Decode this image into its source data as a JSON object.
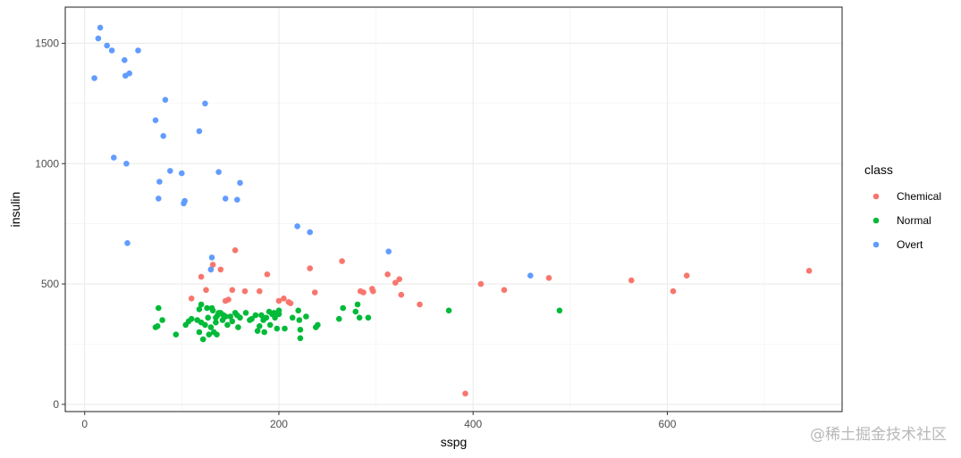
{
  "chart_data": {
    "type": "scatter",
    "xlabel": "sspg",
    "ylabel": "insulin",
    "xlim": [
      -20,
      780
    ],
    "ylim": [
      -30,
      1650
    ],
    "x_ticks": [
      0,
      200,
      400,
      600
    ],
    "y_ticks": [
      0,
      500,
      1000,
      1500
    ],
    "grid": true,
    "legend": {
      "title": "class",
      "position": "right"
    },
    "series": [
      {
        "name": "Chemical",
        "color": "#F8766D",
        "points": [
          [
            110,
            440
          ],
          [
            120,
            530
          ],
          [
            125,
            475
          ],
          [
            130,
            560
          ],
          [
            132,
            580
          ],
          [
            140,
            560
          ],
          [
            145,
            430
          ],
          [
            148,
            435
          ],
          [
            152,
            475
          ],
          [
            155,
            640
          ],
          [
            165,
            470
          ],
          [
            180,
            470
          ],
          [
            188,
            540
          ],
          [
            200,
            430
          ],
          [
            205,
            440
          ],
          [
            210,
            425
          ],
          [
            212,
            420
          ],
          [
            232,
            565
          ],
          [
            237,
            465
          ],
          [
            265,
            595
          ],
          [
            284,
            470
          ],
          [
            287,
            465
          ],
          [
            296,
            480
          ],
          [
            297,
            470
          ],
          [
            312,
            540
          ],
          [
            320,
            505
          ],
          [
            324,
            520
          ],
          [
            326,
            455
          ],
          [
            345,
            415
          ],
          [
            392,
            45
          ],
          [
            408,
            500
          ],
          [
            432,
            475
          ],
          [
            478,
            525
          ],
          [
            563,
            515
          ],
          [
            606,
            470
          ],
          [
            620,
            535
          ],
          [
            746,
            555
          ]
        ]
      },
      {
        "name": "Normal",
        "color": "#00BA38",
        "points": [
          [
            73,
            320
          ],
          [
            75,
            325
          ],
          [
            76,
            400
          ],
          [
            80,
            350
          ],
          [
            94,
            290
          ],
          [
            104,
            330
          ],
          [
            107,
            345
          ],
          [
            110,
            355
          ],
          [
            116,
            350
          ],
          [
            118,
            300
          ],
          [
            118,
            395
          ],
          [
            120,
            415
          ],
          [
            120,
            340
          ],
          [
            122,
            270
          ],
          [
            124,
            330
          ],
          [
            126,
            400
          ],
          [
            127,
            360
          ],
          [
            128,
            290
          ],
          [
            130,
            320
          ],
          [
            131,
            400
          ],
          [
            132,
            390
          ],
          [
            133,
            300
          ],
          [
            135,
            360
          ],
          [
            135,
            340
          ],
          [
            136,
            290
          ],
          [
            137,
            370
          ],
          [
            138,
            380
          ],
          [
            140,
            380
          ],
          [
            142,
            350
          ],
          [
            143,
            370
          ],
          [
            145,
            365
          ],
          [
            147,
            330
          ],
          [
            150,
            365
          ],
          [
            152,
            345
          ],
          [
            155,
            380
          ],
          [
            157,
            370
          ],
          [
            158,
            320
          ],
          [
            160,
            360
          ],
          [
            166,
            380
          ],
          [
            170,
            350
          ],
          [
            172,
            355
          ],
          [
            176,
            370
          ],
          [
            178,
            305
          ],
          [
            180,
            325
          ],
          [
            182,
            370
          ],
          [
            184,
            350
          ],
          [
            185,
            300
          ],
          [
            187,
            360
          ],
          [
            190,
            385
          ],
          [
            191,
            330
          ],
          [
            193,
            375
          ],
          [
            195,
            380
          ],
          [
            196,
            360
          ],
          [
            198,
            315
          ],
          [
            200,
            390
          ],
          [
            200,
            375
          ],
          [
            206,
            315
          ],
          [
            214,
            360
          ],
          [
            220,
            390
          ],
          [
            221,
            350
          ],
          [
            222,
            310
          ],
          [
            222,
            275
          ],
          [
            228,
            365
          ],
          [
            238,
            320
          ],
          [
            240,
            330
          ],
          [
            262,
            355
          ],
          [
            266,
            400
          ],
          [
            279,
            385
          ],
          [
            281,
            415
          ],
          [
            283,
            360
          ],
          [
            292,
            360
          ],
          [
            375,
            390
          ],
          [
            489,
            390
          ]
        ]
      },
      {
        "name": "Overt",
        "color": "#619CFF",
        "points": [
          [
            10,
            1355
          ],
          [
            14,
            1520
          ],
          [
            16,
            1565
          ],
          [
            23,
            1490
          ],
          [
            28,
            1470
          ],
          [
            30,
            1025
          ],
          [
            41,
            1430
          ],
          [
            42,
            1365
          ],
          [
            43,
            1000
          ],
          [
            44,
            670
          ],
          [
            46,
            1375
          ],
          [
            55,
            1470
          ],
          [
            73,
            1180
          ],
          [
            76,
            855
          ],
          [
            77,
            925
          ],
          [
            81,
            1115
          ],
          [
            83,
            1265
          ],
          [
            88,
            970
          ],
          [
            100,
            960
          ],
          [
            102,
            835
          ],
          [
            103,
            845
          ],
          [
            118,
            1135
          ],
          [
            124,
            1250
          ],
          [
            130,
            560
          ],
          [
            131,
            610
          ],
          [
            138,
            965
          ],
          [
            145,
            855
          ],
          [
            157,
            850
          ],
          [
            160,
            920
          ],
          [
            219,
            740
          ],
          [
            232,
            715
          ],
          [
            313,
            635
          ],
          [
            459,
            535
          ]
        ]
      }
    ]
  },
  "watermark": "@稀土掘金技术社区"
}
